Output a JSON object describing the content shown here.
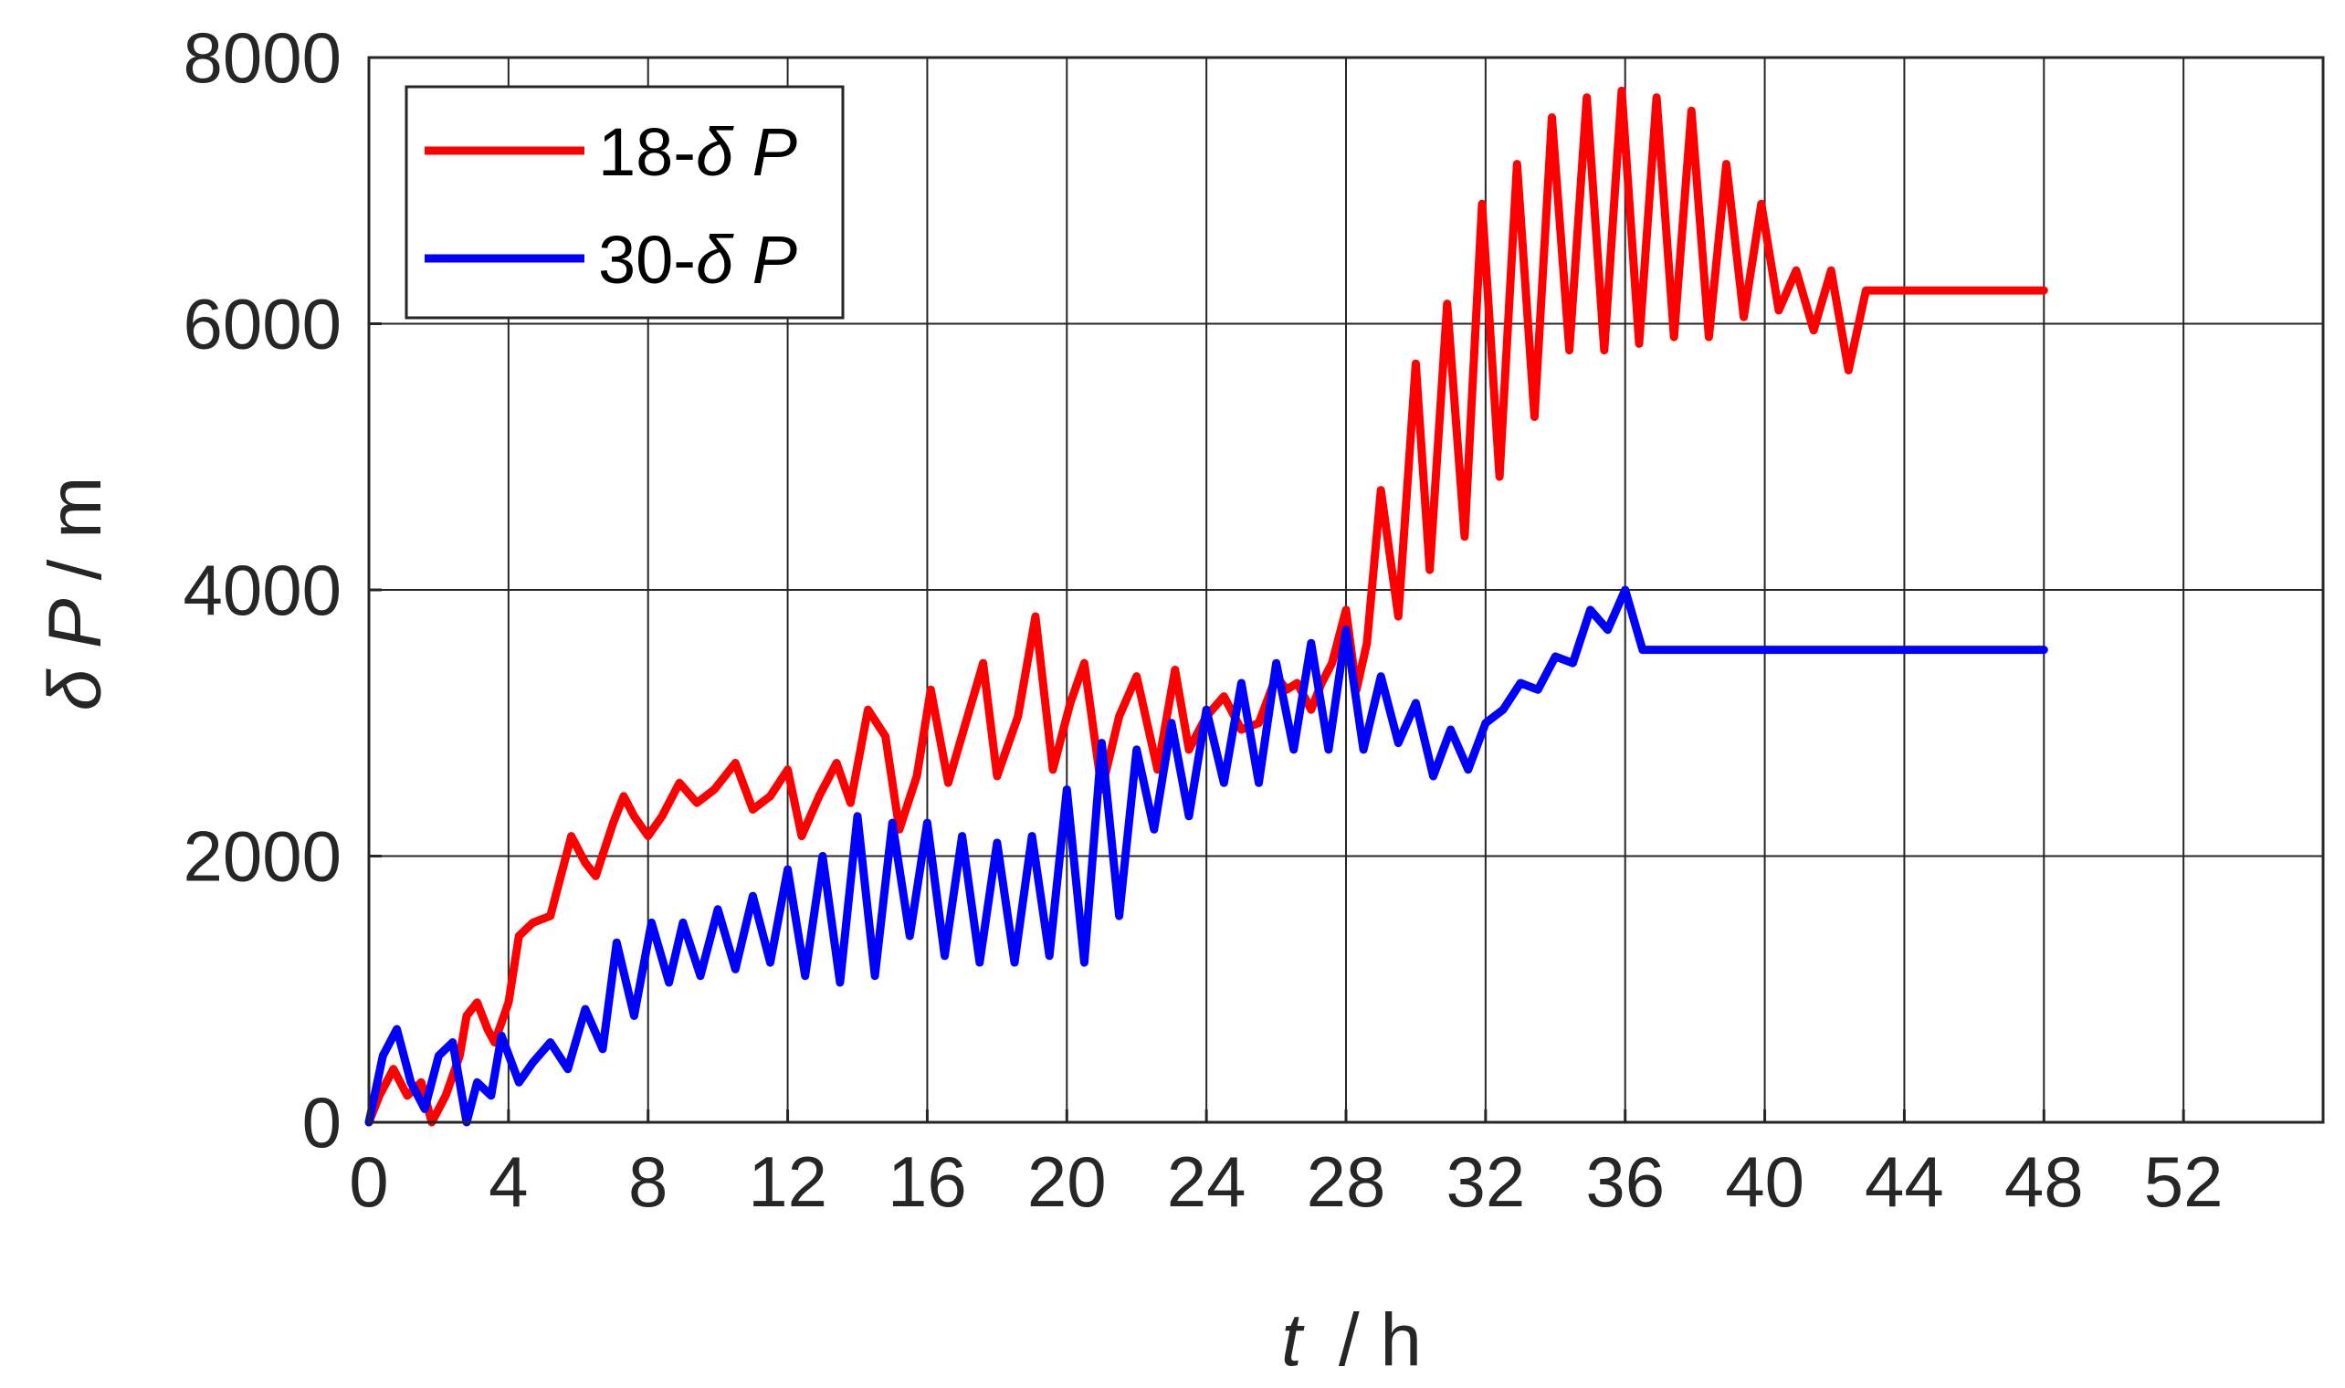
{
  "chart_data": {
    "type": "line",
    "xlabel": {
      "var": "t",
      "unit": "/ h"
    },
    "ylabel": {
      "var": "δ P",
      "unit": "/ m"
    },
    "xlim": [
      0,
      56
    ],
    "ylim": [
      0,
      8000
    ],
    "xticks": [
      0,
      4,
      8,
      12,
      16,
      20,
      24,
      28,
      32,
      36,
      40,
      44,
      48,
      52
    ],
    "yticks": [
      0,
      2000,
      4000,
      6000,
      8000
    ],
    "grid": true,
    "legend_position": "top-left",
    "series": [
      {
        "name_prefix": "18-",
        "name_symbol": "δ P",
        "color": "#ff0000",
        "description": "oscillating growth",
        "x": [
          0,
          0.3,
          0.7,
          1.1,
          1.5,
          1.8,
          2.2,
          2.6,
          2.8,
          3.1,
          3.4,
          3.6,
          4.0,
          4.3,
          4.7,
          5.2,
          5.8,
          6.2,
          6.5,
          7.0,
          7.3,
          7.6,
          8.0,
          8.4,
          8.9,
          9.4,
          9.9,
          10.5,
          11.0,
          11.5,
          12.0,
          12.4,
          12.9,
          13.4,
          13.8,
          14.3,
          14.8,
          15.2,
          15.7,
          16.1,
          16.6,
          17.1,
          17.6,
          18.0,
          18.6,
          19.1,
          19.6,
          20.1,
          20.5,
          21.0,
          21.5,
          22.0,
          22.6,
          23.1,
          23.5,
          24.0,
          24.5,
          25.0,
          25.5,
          26.0,
          26.3,
          26.6,
          27.0,
          27.3,
          27.6,
          28.0,
          28.3,
          28.6,
          29.0,
          29.5,
          30.0,
          30.4,
          30.9,
          31.4,
          31.9,
          32.4,
          32.9,
          33.4,
          33.9,
          34.4,
          34.9,
          35.4,
          35.9,
          36.4,
          36.9,
          37.4,
          37.9,
          38.4,
          38.9,
          39.4,
          39.9,
          40.4,
          40.9,
          41.4,
          41.9,
          42.4,
          42.9,
          43.4,
          43.9,
          44.4,
          44.9,
          45.4,
          45.9,
          46.5,
          47.0,
          47.4,
          47.8,
          48.0
        ],
        "y": [
          0,
          200,
          400,
          200,
          300,
          0,
          200,
          500,
          800,
          900,
          700,
          600,
          900,
          1400,
          1500,
          1550,
          2150,
          1950,
          1850,
          2250,
          2450,
          2300,
          2150,
          2300,
          2550,
          2400,
          2500,
          2700,
          2350,
          2450,
          2650,
          2150,
          2450,
          2700,
          2400,
          3100,
          2900,
          2200,
          2600,
          3250,
          2550,
          3000,
          3450,
          2600,
          3050,
          3800,
          2650,
          3150,
          3450,
          2500,
          3050,
          3350,
          2650,
          3400,
          2800,
          3050,
          3200,
          2950,
          3000,
          3350,
          3250,
          3300,
          3100,
          3300,
          3450,
          3850,
          3250,
          3600,
          4750,
          3800,
          5700,
          4150,
          6150,
          4400,
          6900,
          4850,
          7200,
          5300,
          7550,
          5800,
          7700,
          5800,
          7750,
          5850,
          7700,
          5900,
          7600,
          5900,
          7200,
          6050,
          6900,
          6100,
          6400,
          5950,
          6400,
          5650,
          6250,
          6250,
          6250,
          6250,
          6250,
          6250,
          6250,
          6250,
          6250,
          6250,
          6250,
          6250
        ]
      },
      {
        "name_prefix": "30-",
        "name_symbol": "δ P",
        "color": "#0000ff",
        "description": "oscillating growth",
        "x": [
          0,
          0.4,
          0.8,
          1.2,
          1.6,
          2.0,
          2.4,
          2.8,
          3.1,
          3.5,
          3.8,
          4.3,
          4.7,
          5.2,
          5.7,
          6.2,
          6.7,
          7.1,
          7.6,
          8.1,
          8.6,
          9.0,
          9.5,
          10.0,
          10.5,
          11.0,
          11.5,
          12.0,
          12.5,
          13.0,
          13.5,
          14.0,
          14.5,
          15.0,
          15.5,
          16.0,
          16.5,
          17.0,
          17.5,
          18.0,
          18.5,
          19.0,
          19.5,
          20.0,
          20.5,
          21.0,
          21.5,
          22.0,
          22.5,
          23.0,
          23.5,
          24.0,
          24.5,
          25.0,
          25.5,
          26.0,
          26.5,
          27.0,
          27.5,
          28.0,
          28.5,
          29.0,
          29.5,
          30.0,
          30.5,
          31.0,
          31.5,
          32.0,
          32.5,
          33.0,
          33.5,
          34.0,
          34.5,
          35.0,
          35.5,
          36.0,
          36.5,
          37.0,
          37.5,
          38.0,
          38.5,
          39.0,
          39.5,
          40.0,
          40.5,
          41.0,
          41.5,
          42.0,
          42.5,
          43.0,
          43.5,
          44.0,
          44.5,
          45.0,
          45.5,
          46.0,
          46.5,
          47.0,
          47.5,
          48.0
        ],
        "y": [
          0,
          500,
          700,
          300,
          100,
          500,
          600,
          0,
          300,
          200,
          650,
          300,
          450,
          600,
          400,
          850,
          550,
          1350,
          800,
          1500,
          1050,
          1500,
          1100,
          1600,
          1150,
          1700,
          1200,
          1900,
          1100,
          2000,
          1050,
          2300,
          1100,
          2250,
          1400,
          2250,
          1250,
          2150,
          1200,
          2100,
          1200,
          2150,
          1250,
          2500,
          1200,
          2850,
          1550,
          2800,
          2200,
          3000,
          2300,
          3100,
          2550,
          3300,
          2550,
          3450,
          2800,
          3600,
          2800,
          3700,
          2800,
          3350,
          2850,
          3150,
          2600,
          2950,
          2650,
          3000,
          3100,
          3300,
          3250,
          3500,
          3450,
          3850,
          3700,
          4000,
          3550,
          3550,
          3550,
          3550,
          3550,
          3550,
          3550,
          3550,
          3550,
          3550,
          3550,
          3550,
          3550,
          3550,
          3550,
          3550,
          3550,
          3550,
          3550,
          3550,
          3550,
          3550,
          3550,
          3550
        ]
      }
    ]
  }
}
